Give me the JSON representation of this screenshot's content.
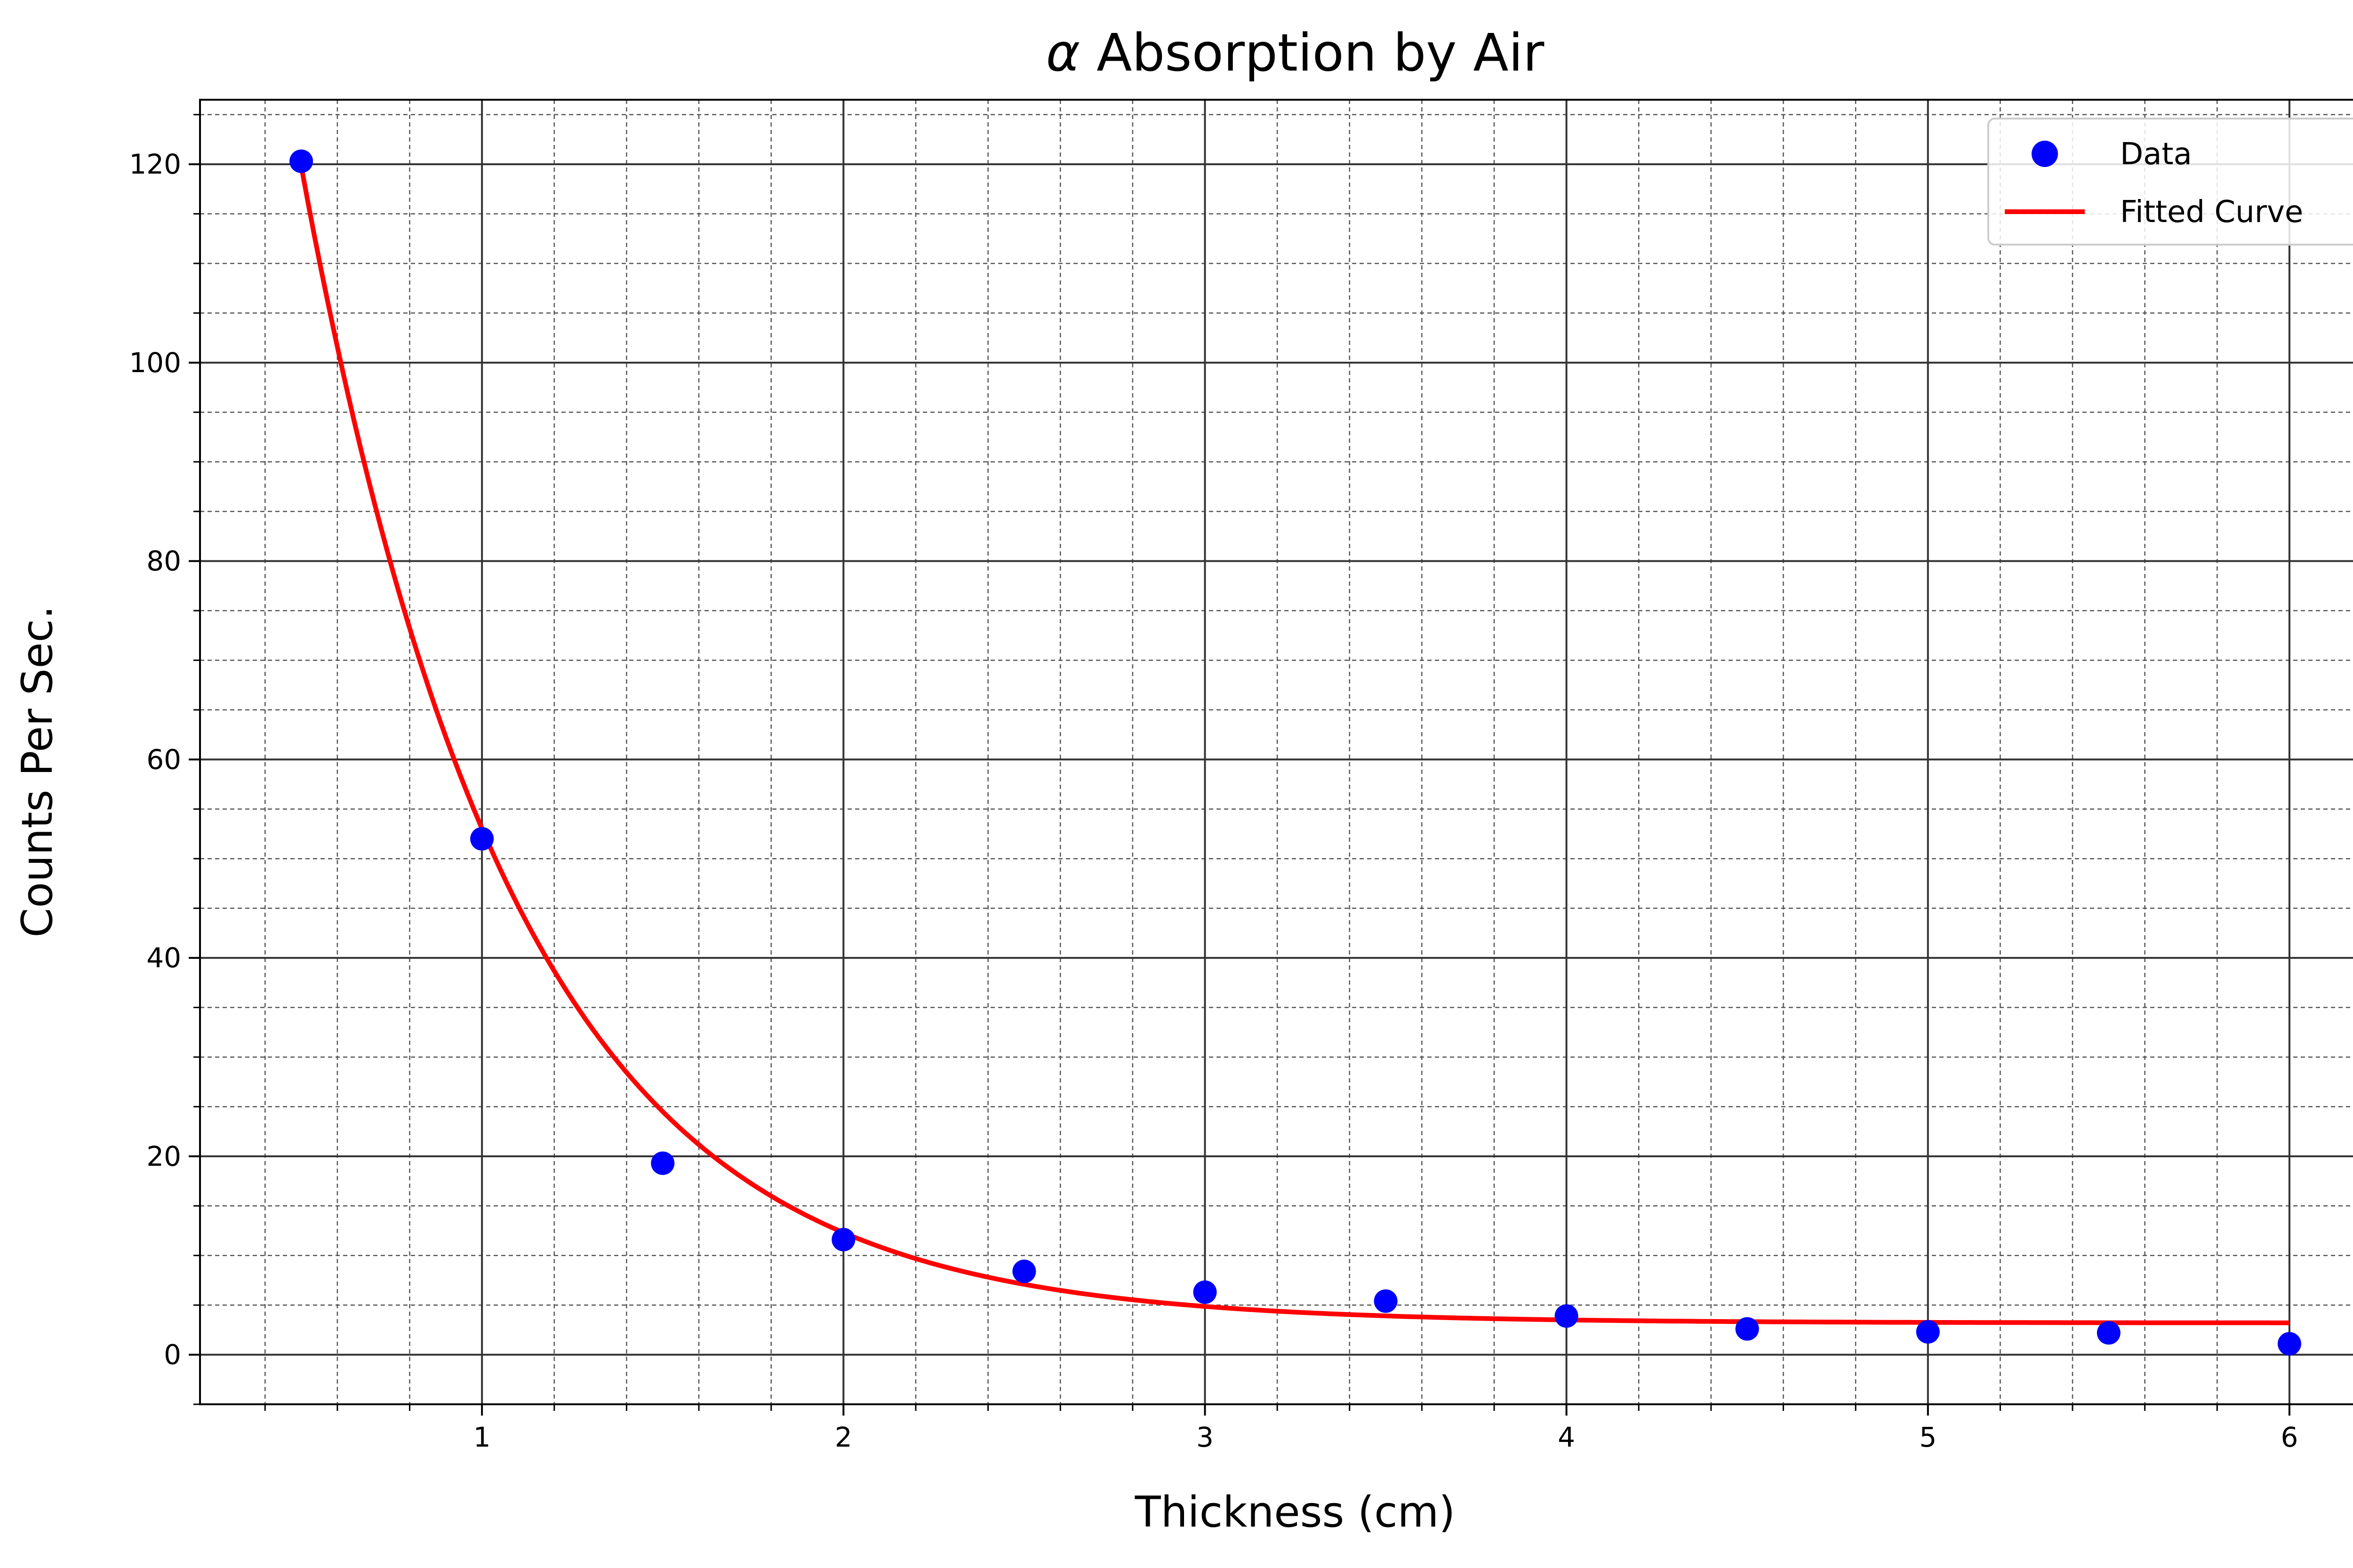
{
  "chart_data": {
    "type": "scatter",
    "title_symbol": "α",
    "title": " Absorption by Air",
    "xlabel": "Thickness (cm)",
    "ylabel": "Counts Per Sec.",
    "xlim": [
      0.22,
      6.28
    ],
    "ylim": [
      -5,
      126.5
    ],
    "xticks": [
      1,
      2,
      3,
      4,
      5,
      6
    ],
    "yticks": [
      0,
      20,
      40,
      60,
      80,
      100,
      120
    ],
    "x_minor_step": 0.2,
    "y_minor_step": 5,
    "grid": true,
    "legend_position": "top-right",
    "series": [
      {
        "name": "Data",
        "kind": "scatter",
        "color": "#0000ff",
        "x": [
          0.5,
          1.0,
          1.5,
          2.0,
          2.5,
          3.0,
          3.5,
          4.0,
          4.5,
          5.0,
          5.5,
          6.0
        ],
        "y": [
          120.3,
          52.0,
          19.3,
          11.6,
          8.4,
          6.3,
          5.4,
          3.9,
          2.6,
          2.3,
          2.2,
          1.1
        ]
      },
      {
        "name": "Fitted Curve",
        "kind": "line",
        "color": "#ff0000",
        "model": {
          "a": 272.8,
          "b": 1.7,
          "c": 3.2
        },
        "x_range": [
          0.5,
          6.0
        ]
      }
    ]
  }
}
